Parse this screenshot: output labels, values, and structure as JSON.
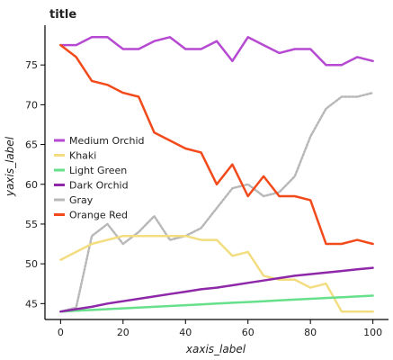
{
  "chart_data": {
    "type": "area",
    "title": "title",
    "xlabel": "xaxis_label",
    "ylabel": "yaxis_label",
    "xlim": [
      -5,
      105
    ],
    "ylim": [
      43,
      80
    ],
    "x_ticks": [
      0,
      20,
      40,
      60,
      80,
      100
    ],
    "y_ticks": [
      45,
      50,
      55,
      60,
      65,
      70,
      75
    ],
    "grid": false,
    "legend_position": "left",
    "x": [
      0,
      5,
      10,
      15,
      20,
      25,
      30,
      35,
      40,
      45,
      50,
      55,
      60,
      65,
      70,
      75,
      80,
      85,
      90,
      95,
      100
    ],
    "series": [
      {
        "name": "Medium Orchid",
        "color": "#b649d2",
        "dash": "none",
        "values": [
          77.5,
          77.5,
          78.5,
          78.5,
          77.0,
          77.0,
          78.0,
          78.5,
          77.0,
          77.0,
          78.0,
          75.5,
          78.5,
          77.5,
          76.5,
          77.0,
          77.0,
          75.0,
          75.0,
          76.0,
          75.5
        ]
      },
      {
        "name": "Gray",
        "color": "#b8b8b8",
        "dash": "2,2",
        "values": [
          44.0,
          44.5,
          53.5,
          55.0,
          52.5,
          54.0,
          56.0,
          53.0,
          53.5,
          54.5,
          57.0,
          59.5,
          60.0,
          58.5,
          59.0,
          61.0,
          66.0,
          69.5,
          71.0,
          71.0,
          71.5
        ]
      },
      {
        "name": "Khaki",
        "color": "#f2dd80",
        "dash": "none",
        "values": [
          50.5,
          51.5,
          52.5,
          53.0,
          53.5,
          53.5,
          53.5,
          53.5,
          53.5,
          53.0,
          53.0,
          51.0,
          51.5,
          48.5,
          48.0,
          48.0,
          47.0,
          47.5,
          44.0,
          44.0,
          44.0
        ]
      },
      {
        "name": "Light Green",
        "color": "#66e08a",
        "dash": "none",
        "values": [
          44.0,
          44.1,
          44.2,
          44.3,
          44.4,
          44.5,
          44.6,
          44.7,
          44.8,
          44.9,
          45.0,
          45.1,
          45.2,
          45.3,
          45.4,
          45.5,
          45.6,
          45.7,
          45.8,
          45.9,
          46.0
        ]
      },
      {
        "name": "Dark Orchid",
        "color": "#8e28a8",
        "dash": "none",
        "values": [
          44.0,
          44.3,
          44.6,
          45.0,
          45.3,
          45.6,
          45.9,
          46.2,
          46.5,
          46.8,
          47.0,
          47.3,
          47.6,
          47.9,
          48.2,
          48.5,
          48.7,
          48.9,
          49.1,
          49.3,
          49.5
        ]
      },
      {
        "name": "Orange Red",
        "color": "#f24a1a",
        "dash": "none",
        "values": [
          77.5,
          76.0,
          73.0,
          72.5,
          71.5,
          71.0,
          66.5,
          65.5,
          64.5,
          64.0,
          60.0,
          62.5,
          58.5,
          61.0,
          58.5,
          58.5,
          58.0,
          52.5,
          52.5,
          53.0,
          52.5
        ]
      }
    ]
  },
  "legend": {
    "items": [
      {
        "name": "Medium Orchid",
        "color": "#b649d2"
      },
      {
        "name": "Khaki",
        "color": "#f2dd80"
      },
      {
        "name": "Light Green",
        "color": "#66e08a"
      },
      {
        "name": "Dark Orchid",
        "color": "#8e28a8"
      },
      {
        "name": "Gray",
        "color": "#b8b8b8"
      },
      {
        "name": "Orange Red",
        "color": "#f24a1a"
      }
    ]
  }
}
